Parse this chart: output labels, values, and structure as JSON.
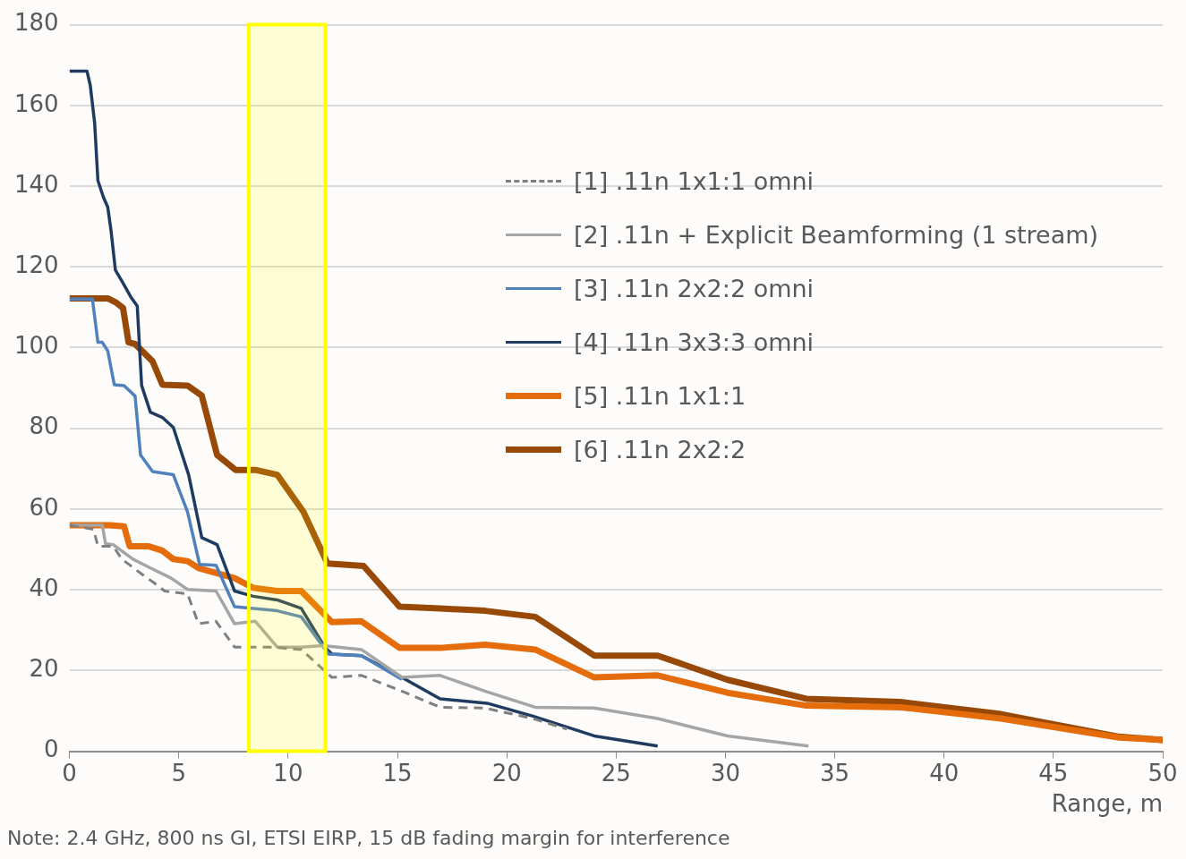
{
  "chart_data": {
    "type": "line",
    "xlabel": "Range, m",
    "xlim": [
      0,
      50
    ],
    "xticks": [
      0,
      5,
      10,
      15,
      20,
      25,
      30,
      35,
      40,
      45,
      50
    ],
    "ylim": [
      0,
      180
    ],
    "yticks": [
      0,
      20,
      40,
      60,
      80,
      100,
      120,
      140,
      160,
      180
    ],
    "grid": "y",
    "legend": "right",
    "marker": "none",
    "series": [
      {
        "name": "[1] .11n 1x1:1 omni",
        "color": "#7f7f7f",
        "line_style": "dashed",
        "x": [
          0,
          1.1,
          1.3,
          2,
          2.4,
          3.3,
          3.85,
          4.35,
          5.4,
          5.9,
          6.7,
          7.55,
          9.2,
          10.6,
          11.7,
          12,
          13.35,
          15.2,
          16.95,
          19,
          21.2,
          22.75
        ],
        "values": [
          56,
          55,
          50.8,
          50.8,
          47.6,
          43.9,
          41.8,
          39.7,
          39,
          31.6,
          32.2,
          25.8,
          25.8,
          25.2,
          19.8,
          18.3,
          18.8,
          14.9,
          10.9,
          10.7,
          8.1,
          5.5
        ]
      },
      {
        "name": "[2] .11n + Explicit Beamforming (1 stream)",
        "color": "#a5a5a5",
        "x": [
          0,
          1.5,
          1.65,
          2,
          2.9,
          3.7,
          4.65,
          5.4,
          6.7,
          7.55,
          8.5,
          9.5,
          10.6,
          11.6,
          13.35,
          15.2,
          16.95,
          19,
          21.3,
          24,
          26.9,
          30.1,
          33.8
        ],
        "values": [
          56,
          56,
          51.4,
          51.2,
          47.6,
          45.4,
          42.9,
          40.1,
          39.7,
          31.6,
          32.2,
          25.8,
          25.8,
          26.2,
          25.2,
          18.3,
          18.8,
          14.9,
          10.9,
          10.7,
          8.1,
          3.8,
          1.3
        ]
      },
      {
        "name": "[3] .11n 2x2:2 omni",
        "color": "#4f81bd",
        "x": [
          0,
          1.05,
          1.3,
          1.5,
          1.75,
          2.05,
          2.5,
          3,
          3.25,
          3.8,
          4.75,
          5.4,
          5.95,
          6.7,
          7.55,
          9.5,
          10.6,
          11.85,
          13.35,
          15.2
        ],
        "values": [
          112,
          112,
          101.3,
          101.3,
          99.2,
          90.8,
          90.6,
          88,
          73.4,
          69.3,
          68.5,
          59.3,
          46.3,
          46.1,
          35.8,
          34.8,
          33.3,
          24.1,
          23.7,
          17.8
        ]
      },
      {
        "name": "[4] .11n 3x3:3 omni",
        "color": "#1f3b60",
        "x": [
          0,
          0.8,
          0.95,
          1.15,
          1.3,
          1.55,
          1.75,
          1.9,
          2.1,
          2.45,
          2.8,
          3.1,
          3.3,
          3.7,
          4.25,
          4.75,
          5.45,
          6.05,
          6.75,
          7.55,
          8.4,
          9.5,
          10.6,
          11.7,
          12,
          13.35,
          15.2,
          16.95,
          19.1,
          21.2,
          24,
          26.9
        ],
        "values": [
          168.5,
          168.5,
          165,
          155.7,
          141.4,
          137.3,
          134.8,
          129,
          119.2,
          116,
          112.6,
          110.3,
          90.6,
          84,
          82.7,
          80.2,
          68.5,
          52.9,
          51.2,
          39.7,
          38.4,
          37.5,
          35.4,
          25.6,
          24.1,
          23.7,
          18.3,
          13,
          11.9,
          8.7,
          3.8,
          1.3
        ]
      },
      {
        "name": "[5] .11n 1x1:1",
        "color": "#e46c0a",
        "x": [
          0,
          1.85,
          2.5,
          2.75,
          3.6,
          4.25,
          4.75,
          5.4,
          5.9,
          7.55,
          8.4,
          9.5,
          10.6,
          12,
          13.35,
          15.1,
          16.95,
          19,
          21.3,
          24,
          26.9,
          30.1,
          33.7,
          38,
          42.6,
          48,
          50
        ],
        "values": [
          56,
          56,
          55.7,
          50.8,
          50.8,
          49.7,
          47.6,
          47.1,
          45.4,
          42.9,
          40.5,
          39.7,
          39.7,
          32,
          32.2,
          25.6,
          25.6,
          26.4,
          25.2,
          18.3,
          18.8,
          14.5,
          11.3,
          10.9,
          8.1,
          3.4,
          2.8
        ]
      },
      {
        "name": "[6] .11n 2x2:2",
        "color": "#984807",
        "x": [
          0,
          1.75,
          2.15,
          2.45,
          2.7,
          3,
          3.8,
          4.25,
          5.4,
          6.05,
          6.75,
          7.6,
          8.5,
          9.5,
          10.7,
          11.8,
          13.45,
          15.1,
          16.95,
          19,
          21.3,
          24,
          26.9,
          30.1,
          33.7,
          38,
          42.6,
          48,
          50
        ],
        "values": [
          112.2,
          112.2,
          111.1,
          109.8,
          101.3,
          100.9,
          96.6,
          90.8,
          90.6,
          88.1,
          73.4,
          69.7,
          69.7,
          68.5,
          59.3,
          46.5,
          45.9,
          35.8,
          35.4,
          34.8,
          33.3,
          23.7,
          23.7,
          17.7,
          13,
          12.2,
          9.2,
          3.6,
          2.8
        ]
      }
    ],
    "bands": [
      {
        "axis": "x",
        "from": 8.2,
        "to": 11.7,
        "color": "#ffff00"
      }
    ],
    "annotations": [
      "Note:  2.4 GHz, 800 ns GI, ETSI EIRP, 15 dB fading margin for interference"
    ]
  }
}
